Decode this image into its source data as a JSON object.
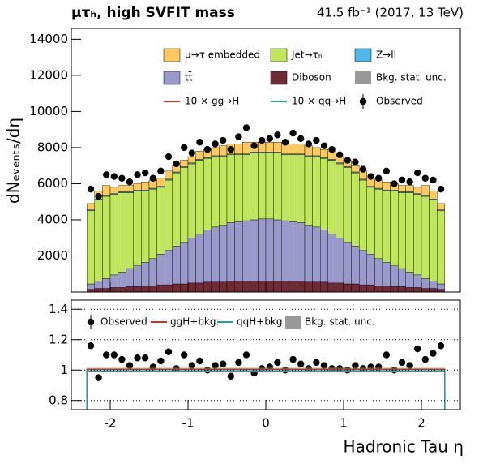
{
  "chart_data": {
    "type": "stacked_histogram",
    "title": "μτₕ, high SVFIT mass",
    "lumi": "41.5 fb⁻¹ (2017, 13 TeV)",
    "y_label": "dNₑᵥₑₙₜₛ/dη",
    "x_label": "Hadronic Tau  η",
    "bins": [
      -2.3,
      -2.2,
      -2.1,
      -2.0,
      -1.9,
      -1.8,
      -1.7,
      -1.6,
      -1.5,
      -1.4,
      -1.3,
      -1.2,
      -1.1,
      -1.0,
      -0.9,
      -0.8,
      -0.7,
      -0.6,
      -0.5,
      -0.4,
      -0.3,
      -0.2,
      -0.1,
      0,
      0.1,
      0.2,
      0.3,
      0.4,
      0.5,
      0.6,
      0.7,
      0.8,
      0.9,
      1.0,
      1.1,
      1.2,
      1.3,
      1.4,
      1.5,
      1.6,
      1.7,
      1.8,
      1.9,
      2.0,
      2.1,
      2.2,
      2.3
    ],
    "xlim": [
      -2.5,
      2.5
    ],
    "xticks": [
      -2,
      -1,
      0,
      1,
      2
    ],
    "ylim": [
      0,
      14600
    ],
    "yticks": [
      2000,
      4000,
      6000,
      8000,
      10000,
      12000,
      14000
    ],
    "series": [
      {
        "name": "Diboson",
        "color": "#6f2a35",
        "values": [
          150,
          200,
          200,
          250,
          250,
          300,
          300,
          350,
          350,
          400,
          400,
          450,
          450,
          500,
          500,
          550,
          550,
          550,
          600,
          600,
          600,
          600,
          600,
          600,
          600,
          600,
          600,
          600,
          550,
          550,
          550,
          500,
          500,
          450,
          450,
          400,
          400,
          350,
          350,
          300,
          300,
          250,
          250,
          200,
          200,
          150
        ]
      },
      {
        "name": "tt̄",
        "color": "#9999cc",
        "values": [
          300,
          400,
          550,
          700,
          850,
          1000,
          1150,
          1300,
          1500,
          1700,
          1900,
          2100,
          2300,
          2500,
          2700,
          2900,
          3050,
          3150,
          3250,
          3300,
          3350,
          3400,
          3450,
          3450,
          3400,
          3350,
          3300,
          3250,
          3150,
          3050,
          2900,
          2700,
          2500,
          2300,
          2100,
          1900,
          1700,
          1500,
          1300,
          1150,
          1000,
          850,
          700,
          550,
          400,
          300
        ]
      },
      {
        "name": "Jet→τₕ",
        "color": "#c0e65c",
        "values": [
          4050,
          4500,
          4550,
          4450,
          4400,
          4200,
          4150,
          3950,
          3850,
          3700,
          3900,
          4050,
          4150,
          4100,
          4100,
          3950,
          3900,
          3800,
          3750,
          3700,
          3650,
          3700,
          3650,
          3650,
          3700,
          3650,
          3700,
          3750,
          3800,
          3900,
          3950,
          4100,
          4100,
          4150,
          4050,
          3900,
          3700,
          3850,
          3950,
          4150,
          4200,
          4400,
          4450,
          4550,
          4500,
          4050
        ]
      },
      {
        "name": "Z→ll",
        "color": "#4fb6e8",
        "values": [
          50,
          50,
          50,
          50,
          50,
          50,
          50,
          50,
          50,
          50,
          50,
          50,
          50,
          50,
          50,
          50,
          50,
          50,
          50,
          50,
          50,
          50,
          50,
          50,
          50,
          50,
          50,
          50,
          50,
          50,
          50,
          50,
          50,
          50,
          50,
          50,
          50,
          50,
          50,
          50,
          50,
          50,
          50,
          50,
          50,
          50
        ]
      },
      {
        "name": "μ→τ embedded",
        "color": "#fec95e",
        "values": [
          350,
          450,
          550,
          350,
          350,
          350,
          350,
          450,
          450,
          450,
          450,
          350,
          350,
          350,
          450,
          450,
          450,
          550,
          550,
          550,
          650,
          550,
          550,
          550,
          550,
          650,
          550,
          550,
          550,
          450,
          450,
          450,
          350,
          350,
          350,
          450,
          450,
          450,
          450,
          350,
          350,
          350,
          350,
          550,
          450,
          350
        ]
      }
    ],
    "observed": {
      "name": "Observed",
      "values": [
        5700,
        5300,
        6500,
        6400,
        6300,
        6100,
        6500,
        6600,
        6300,
        6700,
        7500,
        7100,
        8000,
        7700,
        8300,
        7900,
        8200,
        8400,
        7900,
        8600,
        9100,
        8100,
        8400,
        8500,
        8700,
        8300,
        8800,
        8500,
        8200,
        8400,
        8100,
        7900,
        7600,
        7300,
        7200,
        6800,
        6400,
        6300,
        6700,
        6000,
        6200,
        6100,
        6600,
        6300,
        6200,
        5700
      ]
    },
    "extra_legend": [
      {
        "name": "Bkg. stat. unc.",
        "color": "#999999"
      },
      {
        "name": "10 × gg→H",
        "color": "#c0392b"
      },
      {
        "name": "10 × qq→H",
        "color": "#2aa198"
      }
    ],
    "ratio": {
      "ylim": [
        0.74,
        1.46
      ],
      "yticks": [
        0.8,
        1,
        1.2,
        1.4
      ],
      "grid": true,
      "level": 1,
      "observed": {
        "name": "Observed",
        "values": [
          1.16,
          0.95,
          1.1,
          1.1,
          1.07,
          1.03,
          1.08,
          1.08,
          1.02,
          1.06,
          1.12,
          1.01,
          1.1,
          1.03,
          1.06,
          1.0,
          1.03,
          1.04,
          0.96,
          1.05,
          1.1,
          0.98,
          1.01,
          1.02,
          1.05,
          1.0,
          1.07,
          1.04,
          1.01,
          1.05,
          1.03,
          1.01,
          1.01,
          1.0,
          1.03,
          1.01,
          1.02,
          1.02,
          1.1,
          1.0,
          1.05,
          1.03,
          1.14,
          1.07,
          1.11,
          1.16
        ]
      },
      "legend": [
        {
          "name": "ggH+bkg.",
          "color": "#c0392b"
        },
        {
          "name": "qqH+bkg.",
          "color": "#2aa198"
        },
        {
          "name": "Bkg. stat. unc.",
          "color": "#999999"
        }
      ]
    }
  }
}
